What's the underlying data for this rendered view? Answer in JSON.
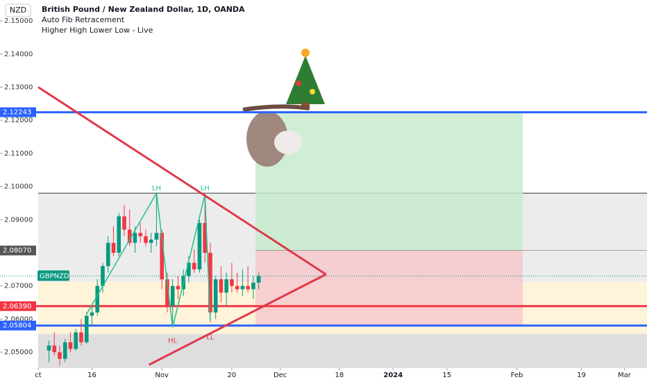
{
  "chart_data": {
    "type": "candlestick",
    "symbol_label": "NZD",
    "title": "British Pound / New Zealand Dollar, 1D, OANDA",
    "indicators": [
      "Auto Fib Retracement",
      "Higher High Lower Low - Live"
    ],
    "ticker_label": "GBPNZD",
    "current_price": 2.073,
    "xlim": [
      -7.1,
      113.2
    ],
    "ylim": [
      2.0452,
      2.1563
    ],
    "yticks": [
      {
        "value": 2.05,
        "label": "2.05000"
      },
      {
        "value": 2.06,
        "label": "2.06000"
      },
      {
        "value": 2.07,
        "label": "2.07000"
      },
      {
        "value": 2.09,
        "label": "2.09000"
      },
      {
        "value": 2.1,
        "label": "2.10000"
      },
      {
        "value": 2.11,
        "label": "2.11000"
      },
      {
        "value": 2.12,
        "label": "2.12000"
      },
      {
        "value": 2.13,
        "label": "2.13000"
      },
      {
        "value": 2.14,
        "label": "2.14000"
      },
      {
        "value": 2.15,
        "label": "2.15000"
      }
    ],
    "xticks": [
      {
        "value": 0,
        "label": "ct"
      },
      {
        "value": 10,
        "label": "16"
      },
      {
        "value": 23,
        "label": "Nov"
      },
      {
        "value": 36,
        "label": "20"
      },
      {
        "value": 45,
        "label": "Dec"
      },
      {
        "value": 56,
        "label": "18"
      },
      {
        "value": 66,
        "label": "2024"
      },
      {
        "value": 76,
        "label": "15"
      },
      {
        "value": 89,
        "label": "Feb"
      },
      {
        "value": 101,
        "label": "19"
      },
      {
        "value": 109,
        "label": "Mar"
      }
    ],
    "candles": {
      "up_color": "#089981",
      "down_color": "#f23645",
      "x": [
        2,
        3,
        4,
        5,
        6,
        7,
        8,
        9,
        10,
        11,
        12,
        13,
        14,
        15,
        16,
        17,
        18,
        19,
        20,
        21,
        22,
        23,
        24,
        25,
        26,
        27,
        28,
        29,
        30,
        31,
        32,
        33,
        34,
        35,
        36,
        37,
        38,
        39,
        40,
        41
      ],
      "open": [
        2.0505,
        2.052,
        2.05,
        2.048,
        2.053,
        2.051,
        2.056,
        2.053,
        2.061,
        2.062,
        2.07,
        2.076,
        2.083,
        2.08,
        2.091,
        2.087,
        2.083,
        2.086,
        2.085,
        2.083,
        2.084,
        2.086,
        2.072,
        2.064,
        2.07,
        2.069,
        2.073,
        2.077,
        2.075,
        2.089,
        2.08,
        2.062,
        2.072,
        2.068,
        2.072,
        2.07,
        2.069,
        2.07,
        2.069,
        2.071
      ],
      "high": [
        2.0535,
        2.056,
        2.052,
        2.054,
        2.056,
        2.057,
        2.06,
        2.062,
        2.064,
        2.072,
        2.077,
        2.085,
        2.088,
        2.092,
        2.0945,
        2.093,
        2.088,
        2.089,
        2.087,
        2.086,
        2.098,
        2.087,
        2.074,
        2.072,
        2.073,
        2.075,
        2.079,
        2.081,
        2.09,
        2.098,
        2.083,
        2.073,
        2.076,
        2.074,
        2.077,
        2.074,
        2.075,
        2.076,
        2.073,
        2.074
      ],
      "low": [
        2.047,
        2.049,
        2.046,
        2.047,
        2.05,
        2.0505,
        2.052,
        2.0525,
        2.058,
        2.061,
        2.068,
        2.074,
        2.079,
        2.079,
        2.085,
        2.082,
        2.08,
        2.083,
        2.082,
        2.08,
        2.082,
        2.069,
        2.062,
        2.0575,
        2.066,
        2.067,
        2.071,
        2.074,
        2.074,
        2.077,
        2.059,
        2.06,
        2.065,
        2.064,
        2.068,
        2.068,
        2.067,
        2.068,
        2.066,
        2.069
      ],
      "close": [
        2.052,
        2.05,
        2.048,
        2.053,
        2.051,
        2.056,
        2.053,
        2.061,
        2.062,
        2.07,
        2.076,
        2.083,
        2.08,
        2.091,
        2.087,
        2.083,
        2.086,
        2.085,
        2.083,
        2.084,
        2.086,
        2.072,
        2.064,
        2.07,
        2.069,
        2.073,
        2.077,
        2.075,
        2.089,
        2.08,
        2.062,
        2.072,
        2.068,
        2.072,
        2.07,
        2.069,
        2.07,
        2.069,
        2.071,
        2.073
      ]
    },
    "fib_bands": [
      {
        "from": 2.098,
        "to": 2.0712,
        "color": "#ececec"
      },
      {
        "from": 2.0712,
        "to": 2.0555,
        "color": "#fff4d9"
      },
      {
        "from": 2.0555,
        "to": 2.0452,
        "color": "#dedede"
      }
    ],
    "fib_start": 0,
    "levels": [
      {
        "value": 2.12243,
        "label": "2.12243",
        "color": "#2962ff"
      },
      {
        "value": 2.0807,
        "label": "2.08070",
        "color": "#555555"
      },
      {
        "value": 2.0639,
        "label": "2.06390",
        "color": "#f23645"
      },
      {
        "value": 2.05804,
        "label": "2.05804",
        "color": "#2962ff"
      }
    ],
    "position": {
      "x": [
        40.4,
        90.1
      ],
      "profit_color": "#c8ebcc",
      "loss_color": "#f6c9cd"
    },
    "trendlines": [
      {
        "x": [
          0,
          53.5
        ],
        "y": [
          2.13,
          2.0735
        ]
      },
      {
        "x": [
          20.6,
          53.5
        ],
        "y": [
          2.0462,
          2.0735
        ]
      }
    ],
    "trend_color": "#e0384a",
    "zigzag": {
      "x": [
        9,
        22,
        25,
        31,
        32
      ],
      "y": [
        2.0615,
        2.098,
        2.0575,
        2.0975,
        2.0595
      ],
      "color": "#22c08a"
    },
    "pivots": [
      {
        "label": "LH",
        "x": 22,
        "y": 2.0995,
        "color": "#22c08a"
      },
      {
        "label": "HL",
        "x": 25,
        "y": 2.0535,
        "color": "#e0384a"
      },
      {
        "label": "LH",
        "x": 31,
        "y": 2.0995,
        "color": "#22c08a"
      },
      {
        "label": "LL",
        "x": 32,
        "y": 2.0545,
        "color": "#e0384a"
      }
    ]
  }
}
